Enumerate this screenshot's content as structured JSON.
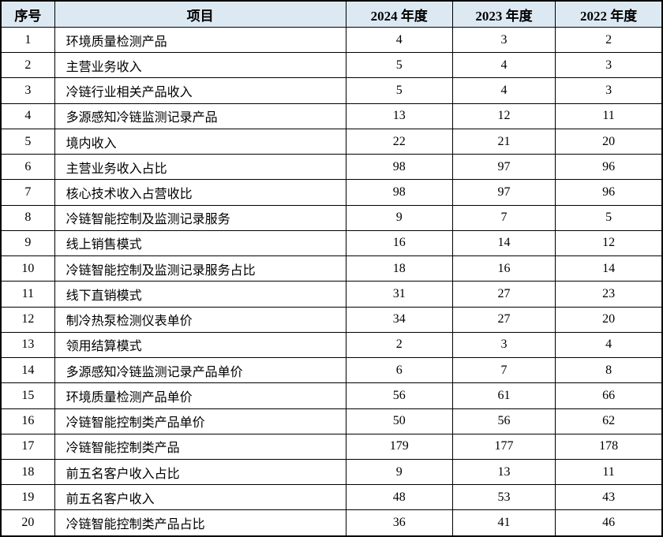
{
  "chart_data": {
    "type": "table",
    "title": "",
    "columns": [
      "序号",
      "项目",
      "2024 年度",
      "2023 年度",
      "2022 年度"
    ],
    "rows": [
      {
        "no": "1",
        "item": "环境质量检测产品",
        "y2024": "4",
        "y2023": "3",
        "y2022": "2"
      },
      {
        "no": "2",
        "item": "主营业务收入",
        "y2024": "5",
        "y2023": "4",
        "y2022": "3"
      },
      {
        "no": "3",
        "item": "冷链行业相关产品收入",
        "y2024": "5",
        "y2023": "4",
        "y2022": "3"
      },
      {
        "no": "4",
        "item": "多源感知冷链监测记录产品",
        "y2024": "13",
        "y2023": "12",
        "y2022": "11"
      },
      {
        "no": "5",
        "item": "境内收入",
        "y2024": "22",
        "y2023": "21",
        "y2022": "20"
      },
      {
        "no": "6",
        "item": "主营业务收入占比",
        "y2024": "98",
        "y2023": "97",
        "y2022": "96"
      },
      {
        "no": "7",
        "item": "核心技术收入占营收比",
        "y2024": "98",
        "y2023": "97",
        "y2022": "96"
      },
      {
        "no": "8",
        "item": "冷链智能控制及监测记录服务",
        "y2024": "9",
        "y2023": "7",
        "y2022": "5"
      },
      {
        "no": "9",
        "item": "线上销售模式",
        "y2024": "16",
        "y2023": "14",
        "y2022": "12"
      },
      {
        "no": "10",
        "item": "冷链智能控制及监测记录服务占比",
        "y2024": "18",
        "y2023": "16",
        "y2022": "14"
      },
      {
        "no": "11",
        "item": "线下直销模式",
        "y2024": "31",
        "y2023": "27",
        "y2022": "23"
      },
      {
        "no": "12",
        "item": "制冷热泵检测仪表单价",
        "y2024": "34",
        "y2023": "27",
        "y2022": "20"
      },
      {
        "no": "13",
        "item": "领用结算模式",
        "y2024": "2",
        "y2023": "3",
        "y2022": "4"
      },
      {
        "no": "14",
        "item": "多源感知冷链监测记录产品单价",
        "y2024": "6",
        "y2023": "7",
        "y2022": "8"
      },
      {
        "no": "15",
        "item": "环境质量检测产品单价",
        "y2024": "56",
        "y2023": "61",
        "y2022": "66"
      },
      {
        "no": "16",
        "item": "冷链智能控制类产品单价",
        "y2024": "50",
        "y2023": "56",
        "y2022": "62"
      },
      {
        "no": "17",
        "item": "冷链智能控制类产品",
        "y2024": "179",
        "y2023": "177",
        "y2022": "178"
      },
      {
        "no": "18",
        "item": "前五名客户收入占比",
        "y2024": "9",
        "y2023": "13",
        "y2022": "11"
      },
      {
        "no": "19",
        "item": "前五名客户收入",
        "y2024": "48",
        "y2023": "53",
        "y2022": "43"
      },
      {
        "no": "20",
        "item": "冷链智能控制类产品占比",
        "y2024": "36",
        "y2023": "41",
        "y2022": "46"
      }
    ]
  },
  "styles": {
    "header_bg": "#dce9f2",
    "border_color": "#000000",
    "text_color": "#000000",
    "row_bg": "#ffffff"
  }
}
